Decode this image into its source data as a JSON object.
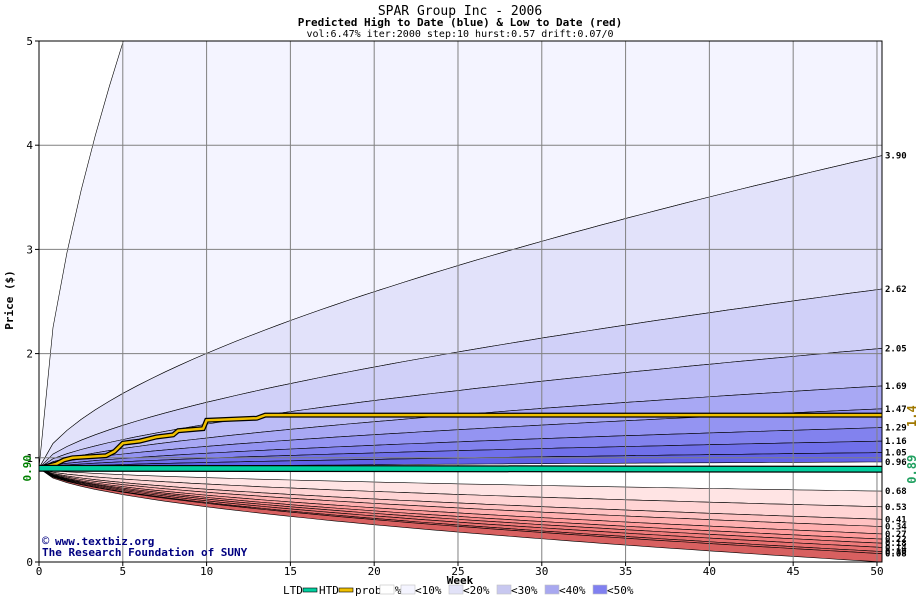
{
  "chart_data": {
    "type": "area",
    "title": "SPAR Group Inc - 2006",
    "subtitle": "Predicted High to Date (blue) &  Low to Date (red)",
    "params_line": "vol:6.47% iter:2000 step:10 hurst:0.57 drift:0.07/0",
    "xlabel": "Week",
    "ylabel": "Price ($)",
    "xlim": [
      0,
      50.3
    ],
    "ylim": [
      0,
      5
    ],
    "x_ticks": [
      0,
      5,
      10,
      15,
      20,
      25,
      30,
      35,
      40,
      45,
      50
    ],
    "y_ticks": [
      0,
      1,
      2,
      3,
      4,
      5
    ],
    "start_price": 0.9,
    "start_price_label": "0.90",
    "htd_current": 1.4,
    "htd_current_label": "1.4",
    "ltd_current": 0.89,
    "ltd_current_label": "0.89",
    "grid": true,
    "htd_band_endpoints": [
      {
        "value": 3.9,
        "label": "3.90"
      },
      {
        "value": 2.62,
        "label": "2.62"
      },
      {
        "value": 2.05,
        "label": "2.05"
      },
      {
        "value": 1.69,
        "label": "1.69"
      },
      {
        "value": 1.47,
        "label": "1.47"
      },
      {
        "value": 1.29,
        "label": "1.29"
      },
      {
        "value": 1.16,
        "label": "1.16"
      },
      {
        "value": 1.05,
        "label": "1.05"
      },
      {
        "value": 0.96,
        "label": "0.96"
      }
    ],
    "ltd_band_endpoints": [
      {
        "value": 0.68,
        "label": "0.68"
      },
      {
        "value": 0.53,
        "label": "0.53"
      },
      {
        "value": 0.41,
        "label": "0.41"
      },
      {
        "value": 0.34,
        "label": "0.34"
      },
      {
        "value": 0.27,
        "label": "0.27"
      },
      {
        "value": 0.22,
        "label": "0.22"
      },
      {
        "value": 0.18,
        "label": "0.18"
      },
      {
        "value": 0.14,
        "label": "0.14"
      },
      {
        "value": 0.1,
        "label": "0.10"
      },
      {
        "value": 0.08,
        "label": "0.08"
      }
    ],
    "htd_path": [
      {
        "x": 0,
        "y": 0.9
      },
      {
        "x": 1,
        "y": 0.94
      },
      {
        "x": 1.5,
        "y": 0.98
      },
      {
        "x": 2,
        "y": 1.0
      },
      {
        "x": 4,
        "y": 1.02
      },
      {
        "x": 4.5,
        "y": 1.06
      },
      {
        "x": 5,
        "y": 1.14
      },
      {
        "x": 6,
        "y": 1.16
      },
      {
        "x": 7,
        "y": 1.2
      },
      {
        "x": 8,
        "y": 1.22
      },
      {
        "x": 8.3,
        "y": 1.26
      },
      {
        "x": 9.8,
        "y": 1.28
      },
      {
        "x": 10,
        "y": 1.36
      },
      {
        "x": 13,
        "y": 1.38
      },
      {
        "x": 13.5,
        "y": 1.41
      },
      {
        "x": 50.3,
        "y": 1.41
      }
    ],
    "ltd_path": [
      {
        "x": 0,
        "y": 0.9
      },
      {
        "x": 50.3,
        "y": 0.89
      }
    ],
    "legend_labels": [
      "LTD",
      "HTD",
      "prob:0%",
      "<10%",
      "<20%",
      "<30%",
      "<40%",
      "<50%"
    ],
    "legend_colors": [
      "#ffffff",
      "#f4f4ff",
      "#e2e2f8",
      "#c8c8f0",
      "#a8a8f0",
      "#8080f0"
    ],
    "watermark_line1": "www.textbiz.org",
    "watermark_line2": "The Research Foundation of SUNY",
    "colors": {
      "htd_line": "#f0c000",
      "ltd_line": "#00d0a0",
      "start_label": "#008000",
      "htd_label": "#a07800",
      "ltd_label": "#20a060",
      "watermark": "#000080",
      "blue_bands": [
        "#f4f4ff",
        "#e2e2fa",
        "#d0d0f8",
        "#bcbcf6",
        "#a8a8f4",
        "#9494f2",
        "#8282ee",
        "#7070ea",
        "#6262e8"
      ],
      "red_bands": [
        "#ffe4e4",
        "#ffd4d4",
        "#ffc2c2",
        "#ffb0b0",
        "#ff9c9c",
        "#f88c8c",
        "#f07c7c",
        "#e87070",
        "#e06868",
        "#d86060"
      ]
    }
  }
}
